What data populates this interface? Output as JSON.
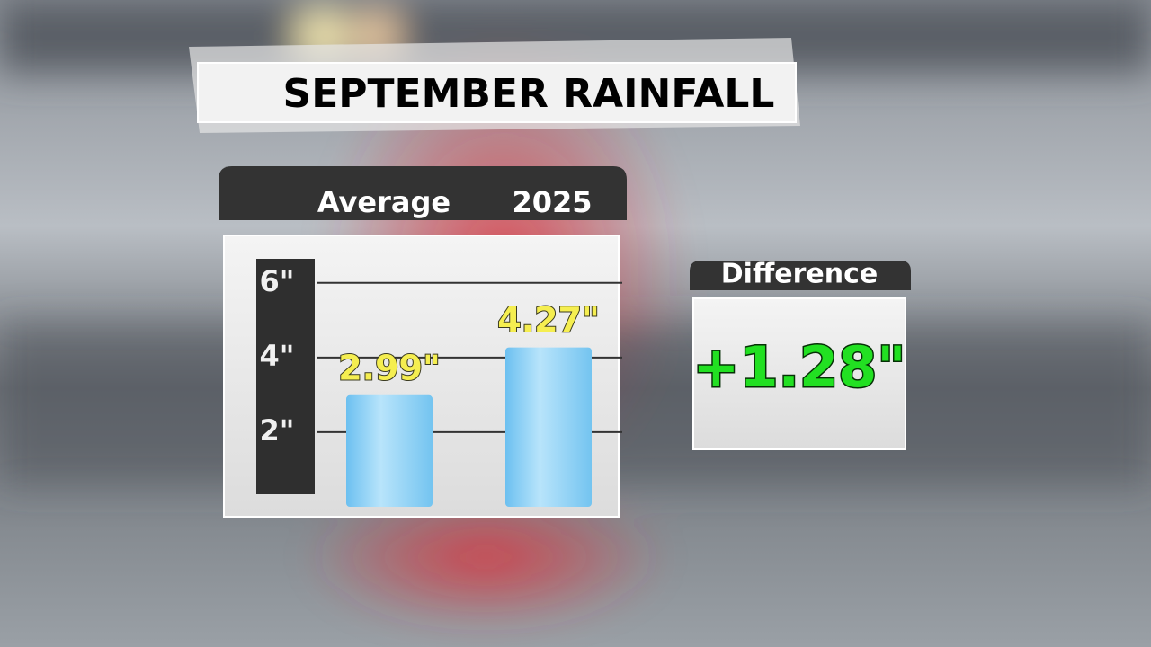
{
  "chart_data": {
    "type": "bar",
    "title": "SEPTEMBER RAINFALL",
    "categories": [
      "Average",
      "2025"
    ],
    "values": [
      2.99,
      4.27
    ],
    "value_labels": [
      "2.99\"",
      "4.27\""
    ],
    "color": "#8fd0f5",
    "ylim": [
      0,
      6.5
    ],
    "yticks": [
      {
        "value": 2,
        "label": "2\""
      },
      {
        "value": 4,
        "label": "4\""
      },
      {
        "value": 6,
        "label": "6\""
      }
    ],
    "grid": true,
    "difference_label": "Difference",
    "difference_value": "+1.28\""
  }
}
